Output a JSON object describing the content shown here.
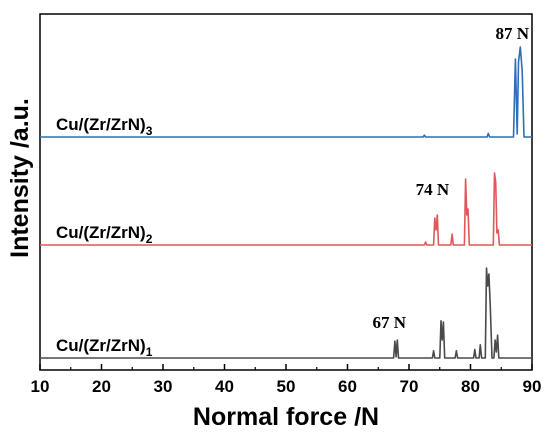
{
  "chart_data": {
    "type": "line",
    "xlabel": "Normal force /N",
    "ylabel": "Intensity /a.u.",
    "xlim": [
      10,
      90
    ],
    "x_ticks": [
      "10",
      "20",
      "30",
      "40",
      "50",
      "60",
      "70",
      "80",
      "90"
    ],
    "y_ticks_labeled": false,
    "grid": false,
    "legend": "none",
    "series": [
      {
        "name_parts": [
          "Cu/(Zr/ZrN)",
          "1"
        ],
        "color": "#4a4a4a",
        "offset": 0,
        "points": [
          [
            10,
            0
          ],
          [
            67.5,
            0
          ],
          [
            67.7,
            0.28
          ],
          [
            67.9,
            0.02
          ],
          [
            68.1,
            0.3
          ],
          [
            68.3,
            0
          ],
          [
            73.8,
            0
          ],
          [
            74.0,
            0.12
          ],
          [
            74.2,
            0
          ],
          [
            75.0,
            0
          ],
          [
            75.2,
            0.62
          ],
          [
            75.4,
            0.3
          ],
          [
            75.6,
            0.6
          ],
          [
            75.8,
            0
          ],
          [
            77.5,
            0
          ],
          [
            77.7,
            0.12
          ],
          [
            77.9,
            0
          ],
          [
            80.5,
            0
          ],
          [
            80.7,
            0.14
          ],
          [
            80.9,
            0
          ],
          [
            81.4,
            0
          ],
          [
            81.6,
            0.22
          ],
          [
            81.8,
            0
          ],
          [
            82.4,
            0
          ],
          [
            82.6,
            1.5
          ],
          [
            82.8,
            1.2
          ],
          [
            83.0,
            1.4
          ],
          [
            83.2,
            0.9
          ],
          [
            83.5,
            0
          ],
          [
            83.8,
            0
          ],
          [
            84.0,
            0.3
          ],
          [
            84.2,
            0.1
          ],
          [
            84.4,
            0.38
          ],
          [
            84.6,
            0
          ],
          [
            90,
            0
          ]
        ]
      },
      {
        "name_parts": [
          "Cu/(Zr/ZrN)",
          "2"
        ],
        "color": "#e15759",
        "offset": 1,
        "points": [
          [
            10,
            0
          ],
          [
            72.5,
            0
          ],
          [
            72.7,
            0.05
          ],
          [
            72.9,
            0
          ],
          [
            74.0,
            0
          ],
          [
            74.2,
            0.45
          ],
          [
            74.4,
            0.25
          ],
          [
            74.6,
            0.5
          ],
          [
            74.8,
            0
          ],
          [
            76.8,
            0
          ],
          [
            77.0,
            0.18
          ],
          [
            77.2,
            0
          ],
          [
            79.0,
            0
          ],
          [
            79.2,
            1.1
          ],
          [
            79.4,
            0.5
          ],
          [
            79.6,
            0.6
          ],
          [
            79.8,
            0
          ],
          [
            83.7,
            0
          ],
          [
            83.9,
            1.2
          ],
          [
            84.1,
            1.05
          ],
          [
            84.3,
            0.2
          ],
          [
            84.5,
            0.25
          ],
          [
            84.7,
            0
          ],
          [
            90,
            0
          ]
        ]
      },
      {
        "name_parts": [
          "Cu/(Zr/ZrN)",
          "3"
        ],
        "color": "#2f6db5",
        "offset": 2,
        "points": [
          [
            10,
            0
          ],
          [
            72.3,
            0
          ],
          [
            72.5,
            0.03
          ],
          [
            72.7,
            0
          ],
          [
            82.7,
            0
          ],
          [
            82.9,
            0.06
          ],
          [
            83.1,
            0
          ],
          [
            87.0,
            0
          ],
          [
            87.3,
            1.3
          ],
          [
            87.6,
            0.05
          ],
          [
            87.8,
            1.25
          ],
          [
            88.1,
            1.5
          ],
          [
            88.4,
            1.1
          ],
          [
            88.7,
            0
          ],
          [
            90,
            0
          ]
        ]
      }
    ],
    "annotations": [
      {
        "text": "67 N",
        "x": 67,
        "series": 0
      },
      {
        "text": "74 N",
        "x": 74,
        "series": 1
      },
      {
        "text": "87 N",
        "x": 87,
        "series": 2
      }
    ]
  }
}
